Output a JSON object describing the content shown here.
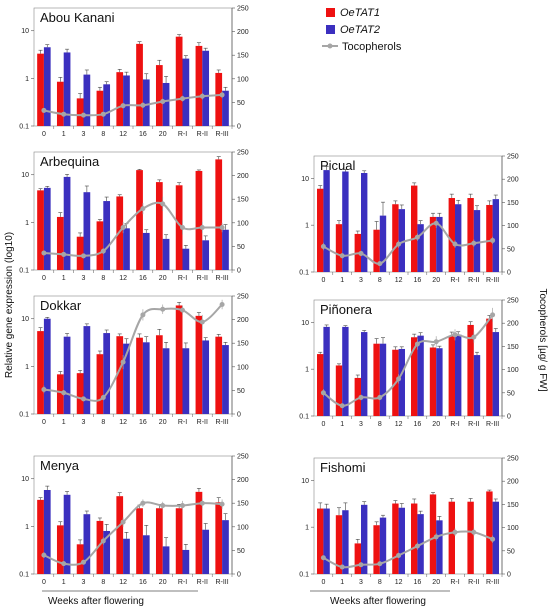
{
  "y_left_label": "Relative gene expression (log10)",
  "y_right_label": "Tocopherols [µg/ g FW]",
  "x_label_left": "Weeks after flowering",
  "x_label_right": "Weeks after flowering",
  "colors": {
    "OeTAT1": "#ee1111",
    "OeTAT2": "#3b2fbf",
    "Tocopherols": "#a6a6a6"
  },
  "chart_data": [
    {
      "type": "bar",
      "title": "Abou Kanani",
      "categories": [
        "0",
        "1",
        "3",
        "8",
        "12",
        "16",
        "20",
        "R-I",
        "R-II",
        "R-III"
      ],
      "ylim": [
        0.1,
        30
      ],
      "y_scale": "log",
      "yticks": [
        "0.1",
        "1",
        "10"
      ],
      "y2lim": [
        0,
        250
      ],
      "y2ticks": [
        "0",
        "50",
        "100",
        "150",
        "200",
        "250"
      ],
      "series": [
        {
          "name": "OeTAT1",
          "kind": "bar",
          "values": [
            3.3,
            0.85,
            0.38,
            0.55,
            1.35,
            5.3,
            1.9,
            7.5,
            4.8,
            1.3
          ],
          "errors": [
            0.6,
            0.2,
            0.1,
            0.1,
            0.2,
            0.6,
            0.5,
            0.8,
            0.8,
            0.2
          ]
        },
        {
          "name": "OeTAT2",
          "kind": "bar",
          "values": [
            4.5,
            3.5,
            1.2,
            0.75,
            1.15,
            0.95,
            0.8,
            2.6,
            3.8,
            0.55
          ],
          "errors": [
            0.6,
            0.6,
            0.3,
            0.1,
            0.2,
            0.3,
            0.3,
            0.4,
            0.5,
            0.1
          ]
        },
        {
          "name": "Tocopherols",
          "kind": "line",
          "values": [
            33,
            25,
            23,
            25,
            43,
            44,
            52,
            58,
            63,
            66
          ],
          "errors": [
            5,
            4,
            4,
            4,
            6,
            6,
            6,
            6,
            7,
            7
          ]
        }
      ]
    },
    {
      "type": "bar",
      "title": "Arbequina",
      "categories": [
        "0",
        "1",
        "3",
        "8",
        "12",
        "16",
        "20",
        "R-I",
        "R-II",
        "R-III"
      ],
      "ylim": [
        0.1,
        30
      ],
      "y_scale": "log",
      "yticks": [
        "0.1",
        "1",
        "10"
      ],
      "y2lim": [
        0,
        250
      ],
      "y2ticks": [
        "0",
        "50",
        "100",
        "150",
        "200",
        "250"
      ],
      "series": [
        {
          "name": "OeTAT1",
          "kind": "bar",
          "values": [
            4.7,
            1.3,
            0.5,
            1.05,
            3.5,
            12.5,
            7,
            6,
            12,
            21
          ],
          "errors": [
            0.4,
            0.3,
            0.1,
            0.1,
            0.3,
            0.5,
            0.8,
            0.8,
            0.6,
            3
          ]
        },
        {
          "name": "OeTAT2",
          "kind": "bar",
          "values": [
            5.3,
            9,
            4.3,
            2.8,
            0.75,
            0.6,
            0.45,
            0.28,
            0.42,
            0.7
          ],
          "errors": [
            0.4,
            1.2,
            1.5,
            0.6,
            0.2,
            0.1,
            0.1,
            0.05,
            0.1,
            0.2
          ]
        },
        {
          "name": "Tocopherols",
          "kind": "line",
          "values": [
            36,
            33,
            30,
            40,
            90,
            130,
            140,
            90,
            90,
            90
          ],
          "errors": [
            5,
            5,
            5,
            6,
            12,
            12,
            15,
            15,
            12,
            10
          ]
        }
      ]
    },
    {
      "type": "bar",
      "title": "Dokkar",
      "categories": [
        "0",
        "1",
        "3",
        "8",
        "12",
        "16",
        "20",
        "R-I",
        "R-II",
        "R-III"
      ],
      "ylim": [
        0.1,
        30
      ],
      "y_scale": "log",
      "yticks": [
        "0.1",
        "1",
        "10"
      ],
      "y2lim": [
        0,
        250
      ],
      "y2ticks": [
        "0",
        "50",
        "100",
        "150",
        "200",
        "250"
      ],
      "series": [
        {
          "name": "OeTAT1",
          "kind": "bar",
          "values": [
            5.5,
            0.68,
            0.72,
            1.8,
            4.3,
            4,
            4.5,
            19,
            11.5,
            4.2
          ],
          "errors": [
            1,
            0.1,
            0.1,
            0.3,
            0.5,
            0.8,
            1.5,
            3,
            2,
            0.5
          ]
        },
        {
          "name": "OeTAT2",
          "kind": "bar",
          "values": [
            10,
            4.2,
            7,
            5,
            3,
            3.2,
            2.4,
            2.4,
            3.5,
            2.8
          ],
          "errors": [
            0.7,
            0.7,
            0.8,
            0.8,
            0.8,
            1,
            0.8,
            0.7,
            0.5,
            0.4
          ]
        },
        {
          "name": "Tocopherols",
          "kind": "line",
          "values": [
            52,
            45,
            32,
            35,
            110,
            210,
            222,
            220,
            195,
            232
          ],
          "errors": [
            8,
            6,
            5,
            6,
            15,
            12,
            10,
            10,
            15,
            10
          ]
        }
      ]
    },
    {
      "type": "bar",
      "title": "Menya",
      "categories": [
        "0",
        "1",
        "3",
        "8",
        "12",
        "16",
        "20",
        "R-I",
        "R-II",
        "R-III"
      ],
      "ylim": [
        0.1,
        30
      ],
      "y_scale": "log",
      "yticks": [
        "0.1",
        "1",
        "10"
      ],
      "y2lim": [
        0,
        250
      ],
      "y2ticks": [
        "0",
        "50",
        "100",
        "150",
        "200",
        "250"
      ],
      "series": [
        {
          "name": "OeTAT1",
          "kind": "bar",
          "values": [
            3.6,
            1.05,
            0.42,
            1.3,
            4.3,
            2.4,
            2.4,
            2.4,
            5.3,
            3.2
          ],
          "errors": [
            0.4,
            0.2,
            0.1,
            0.2,
            0.8,
            0.4,
            0.5,
            0.5,
            1,
            0.8
          ]
        },
        {
          "name": "OeTAT2",
          "kind": "bar",
          "values": [
            5.8,
            4.6,
            1.8,
            0.8,
            0.55,
            0.65,
            0.38,
            0.32,
            0.85,
            1.35
          ],
          "errors": [
            1.2,
            0.8,
            0.3,
            0.3,
            0.2,
            0.4,
            0.2,
            0.1,
            0.3,
            0.5
          ]
        },
        {
          "name": "Tocopherols",
          "kind": "line",
          "values": [
            40,
            22,
            25,
            70,
            110,
            150,
            145,
            145,
            150,
            148
          ],
          "errors": [
            6,
            5,
            5,
            8,
            10,
            8,
            8,
            10,
            10,
            10
          ]
        }
      ]
    },
    {
      "type": "bar",
      "title": "Picual",
      "categories": [
        "0",
        "1",
        "3",
        "8",
        "12",
        "16",
        "20",
        "R-I",
        "R-II",
        "R-III"
      ],
      "ylim": [
        0.1,
        30
      ],
      "y_scale": "log",
      "yticks": [
        "0.1",
        "1",
        "10"
      ],
      "y2lim": [
        0,
        250
      ],
      "y2ticks": [
        "0",
        "50",
        "100",
        "150",
        "200",
        "250"
      ],
      "series": [
        {
          "name": "OeTAT1",
          "kind": "bar",
          "values": [
            6,
            1.05,
            0.65,
            0.8,
            2.8,
            7,
            1.5,
            3.8,
            3.8,
            2.7
          ],
          "errors": [
            1,
            0.2,
            0.1,
            0.4,
            0.5,
            1,
            0.3,
            0.8,
            0.8,
            0.6
          ]
        },
        {
          "name": "OeTAT2",
          "kind": "bar",
          "values": [
            15,
            14,
            13,
            1.6,
            2.2,
            1.05,
            1.5,
            2.8,
            2.1,
            3.6
          ],
          "errors": [
            3,
            1.5,
            1.5,
            1.5,
            0.5,
            0.2,
            0.3,
            0.6,
            0.5,
            0.8
          ]
        },
        {
          "name": "Tocopherols",
          "kind": "line",
          "values": [
            55,
            35,
            40,
            18,
            60,
            75,
            105,
            60,
            62,
            68
          ],
          "errors": [
            8,
            6,
            6,
            4,
            8,
            8,
            10,
            8,
            8,
            8
          ]
        }
      ]
    },
    {
      "type": "bar",
      "title": "Piñonera",
      "categories": [
        "0",
        "1",
        "3",
        "8",
        "12",
        "16",
        "20",
        "R-I",
        "R-II",
        "R-III"
      ],
      "ylim": [
        0.1,
        30
      ],
      "y_scale": "log",
      "yticks": [
        "0.1",
        "1",
        "10"
      ],
      "y2lim": [
        0,
        250
      ],
      "y2ticks": [
        "0",
        "50",
        "100",
        "150",
        "200",
        "250"
      ],
      "series": [
        {
          "name": "OeTAT1",
          "kind": "bar",
          "values": [
            2.1,
            1.2,
            0.65,
            3.5,
            2.6,
            4.8,
            2.9,
            5.2,
            8.8,
            12
          ],
          "errors": [
            0.2,
            0.1,
            0.1,
            1,
            0.4,
            0.8,
            0.4,
            1,
            1.5,
            2
          ]
        },
        {
          "name": "OeTAT2",
          "kind": "bar",
          "values": [
            8,
            8,
            6.2,
            3.5,
            2.7,
            5.2,
            2.8,
            5.5,
            2,
            6.2
          ],
          "errors": [
            0.8,
            0.5,
            0.5,
            1.2,
            0.3,
            0.8,
            0.3,
            0.8,
            0.3,
            1.2
          ]
        },
        {
          "name": "Tocopherols",
          "kind": "line",
          "values": [
            50,
            22,
            40,
            40,
            80,
            155,
            160,
            175,
            170,
            218
          ],
          "errors": [
            8,
            5,
            6,
            6,
            10,
            12,
            12,
            12,
            12,
            15
          ]
        }
      ]
    },
    {
      "type": "bar",
      "title": "Fishomi",
      "categories": [
        "0",
        "1",
        "3",
        "8",
        "12",
        "16",
        "20",
        "R-I",
        "R-II",
        "R-III"
      ],
      "ylim": [
        0.1,
        30
      ],
      "y_scale": "log",
      "yticks": [
        "0.1",
        "1",
        "10"
      ],
      "y2lim": [
        0,
        250
      ],
      "y2ticks": [
        "0",
        "50",
        "100",
        "150",
        "200",
        "250"
      ],
      "series": [
        {
          "name": "OeTAT1",
          "kind": "bar",
          "values": [
            2.5,
            1.8,
            0.45,
            1.1,
            3.2,
            3.2,
            5,
            3.5,
            3.5,
            5.8
          ],
          "errors": [
            0.8,
            0.8,
            0.1,
            0.2,
            0.5,
            0.8,
            0.5,
            0.6,
            0.6,
            0.4
          ]
        },
        {
          "name": "OeTAT2",
          "kind": "bar",
          "values": [
            2.5,
            2.3,
            3,
            1.6,
            2.6,
            1.9,
            1.4,
            0.1,
            0.1,
            3.5
          ],
          "errors": [
            0.6,
            1,
            0.5,
            0.2,
            0.6,
            0.3,
            0.3,
            0,
            0,
            0.5
          ]
        },
        {
          "name": "Tocopherols",
          "kind": "line",
          "values": [
            35,
            15,
            20,
            22,
            40,
            60,
            80,
            90,
            90,
            75
          ],
          "errors": [
            5,
            4,
            4,
            4,
            6,
            8,
            8,
            8,
            8,
            8
          ]
        }
      ]
    }
  ],
  "legend": [
    "OeTAT1",
    "OeTAT2",
    "Tocopherols"
  ]
}
